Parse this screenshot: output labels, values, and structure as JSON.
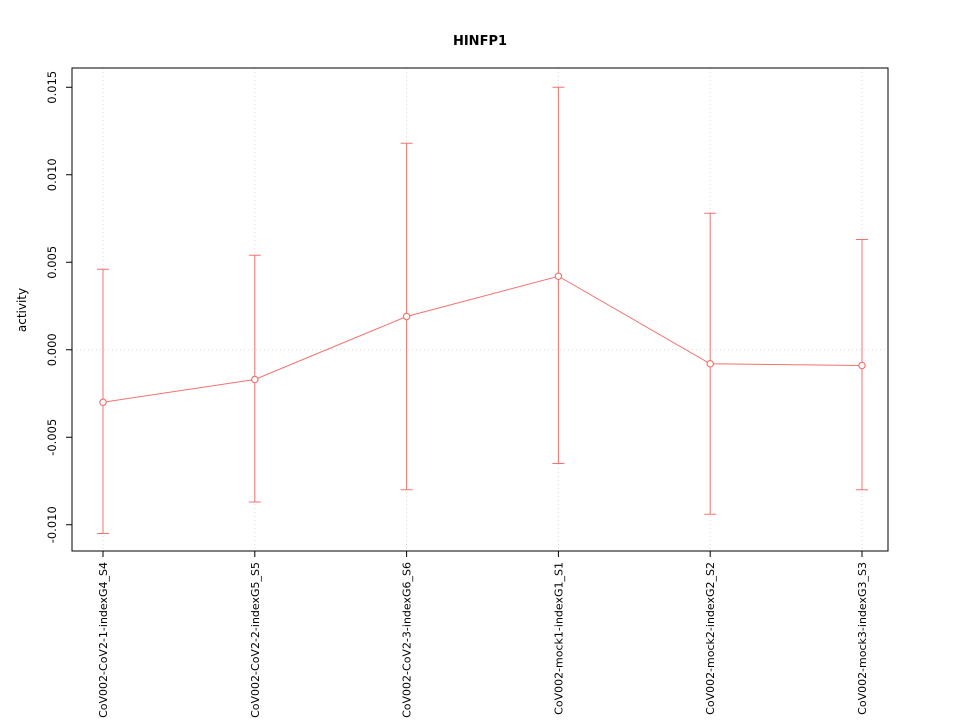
{
  "chart_data": {
    "type": "line",
    "title": "HINFP1",
    "xlabel": "",
    "ylabel": "activity",
    "categories": [
      "CoV002-CoV2-1-indexG4_S4",
      "CoV002-CoV2-2-indexG5_S5",
      "CoV002-CoV2-3-indexG6_S6",
      "CoV002-mock1-indexG1_S1",
      "CoV002-mock2-indexG2_S2",
      "CoV002-mock3-indexG3_S3"
    ],
    "series": [
      {
        "name": "activity",
        "values": [
          -0.003,
          -0.0017,
          0.0019,
          0.0042,
          -0.0008,
          -0.0009
        ],
        "error_low": [
          -0.0105,
          -0.0087,
          -0.008,
          -0.0065,
          -0.0094,
          -0.008
        ],
        "error_high": [
          0.0046,
          0.0054,
          0.0118,
          0.015,
          0.0078,
          0.0063
        ]
      }
    ],
    "yticks": [
      -0.01,
      -0.005,
      0.0,
      0.005,
      0.01,
      0.015
    ],
    "ytick_labels": [
      "-0.010",
      "-0.005",
      "0.000",
      "0.005",
      "0.010",
      "0.015"
    ],
    "ylim": [
      -0.0115,
      0.0161
    ],
    "grid": {
      "horizontal_at_zero": true,
      "vertical_at_categories": true,
      "style": "dotted"
    },
    "legend": "none",
    "marker": "open-circle",
    "colors": {
      "series": "#f4726e",
      "grid": "#d9d9d9",
      "axis": "#000000",
      "background": "#ffffff"
    }
  }
}
